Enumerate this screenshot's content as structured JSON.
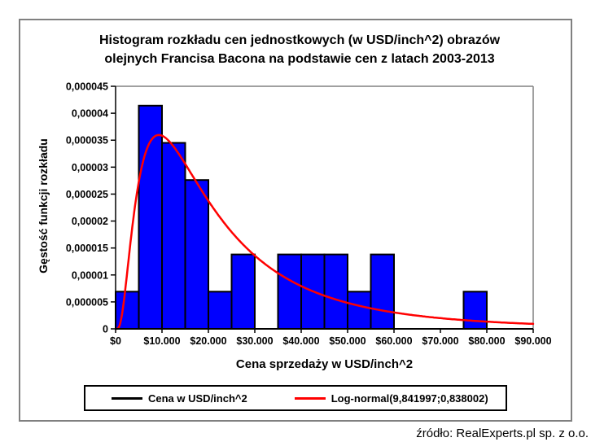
{
  "source_note": "źródło: RealExperts.pl sp. z o.o.",
  "chart_data": {
    "type": "bar",
    "subtype": "histogram-with-density-curve",
    "title": "Histogram rozkładu cen jednostkowych (w USD/inch^2) obrazów olejnych Francisa Bacona na podstawie cen z latach 2003-2013",
    "title_lines": [
      "Histogram rozkładu cen jednostkowych (w USD/inch^2) obrazów",
      "olejnych Francisa Bacona na podstawie cen z latach 2003-2013"
    ],
    "xlabel": "Cena sprzedaży w USD/inch^2",
    "ylabel": "Gęstość funkcji rozkładu",
    "xlim": [
      0,
      90000
    ],
    "ylim": [
      0,
      4.5e-05
    ],
    "x_tick_step": 10000,
    "y_tick_step": 5e-06,
    "x_tick_labels": [
      "$0",
      "$10.000",
      "$20.000",
      "$30.000",
      "$40.000",
      "$50.000",
      "$60.000",
      "$70.000",
      "$80.000",
      "$90.000"
    ],
    "y_tick_labels": [
      "0",
      "0,000005",
      "0,00001",
      "0,000015",
      "0,00002",
      "0,000025",
      "0,00003",
      "0,000035",
      "0,00004",
      "0,000045"
    ],
    "gridlines": false,
    "bin_width": 5000,
    "bins": [
      {
        "x0": 0,
        "x1": 5000,
        "density": 6.9e-06
      },
      {
        "x0": 5000,
        "x1": 10000,
        "density": 4.14e-05
      },
      {
        "x0": 10000,
        "x1": 15000,
        "density": 3.45e-05
      },
      {
        "x0": 15000,
        "x1": 20000,
        "density": 2.76e-05
      },
      {
        "x0": 20000,
        "x1": 25000,
        "density": 6.9e-06
      },
      {
        "x0": 25000,
        "x1": 30000,
        "density": 1.38e-05
      },
      {
        "x0": 30000,
        "x1": 35000,
        "density": 0
      },
      {
        "x0": 35000,
        "x1": 40000,
        "density": 1.38e-05
      },
      {
        "x0": 40000,
        "x1": 45000,
        "density": 1.38e-05
      },
      {
        "x0": 45000,
        "x1": 50000,
        "density": 1.38e-05
      },
      {
        "x0": 50000,
        "x1": 55000,
        "density": 6.9e-06
      },
      {
        "x0": 55000,
        "x1": 60000,
        "density": 1.38e-05
      },
      {
        "x0": 60000,
        "x1": 65000,
        "density": 0
      },
      {
        "x0": 65000,
        "x1": 70000,
        "density": 0
      },
      {
        "x0": 70000,
        "x1": 75000,
        "density": 0
      },
      {
        "x0": 75000,
        "x1": 80000,
        "density": 6.9e-06
      },
      {
        "x0": 80000,
        "x1": 85000,
        "density": 0
      },
      {
        "x0": 85000,
        "x1": 90000,
        "density": 0
      }
    ],
    "bar_color": "#0000FF",
    "bar_border_color": "#000000",
    "curve": {
      "label": "Log-normal(9,841997;0,838002)",
      "distribution": "lognormal",
      "mu": 9.841997,
      "sigma": 0.838002,
      "color": "#FF0000"
    },
    "legend_position": "bottom",
    "legend": [
      {
        "label": "Cena w USD/inch^2",
        "color": "#000000"
      },
      {
        "label": "Log-normal(9,841997;0,838002)",
        "color": "#FF0000"
      }
    ],
    "axis_color": "#000000",
    "frame_color": "#808080"
  }
}
